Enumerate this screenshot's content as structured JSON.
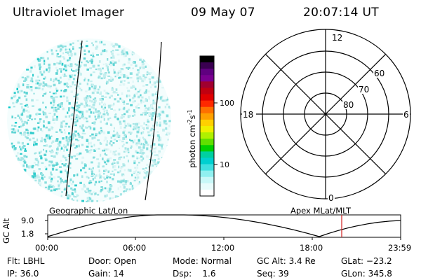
{
  "header": {
    "instrument": "Ultraviolet Imager",
    "date": "09 May 07",
    "time": "20:07:14 UT"
  },
  "colorbar": {
    "unit_label": "photon cm",
    "unit_sup1": "-2",
    "unit_mid": "s",
    "unit_sup2": "-1",
    "tick_100": "100",
    "tick_10": "10",
    "colors": [
      "#000000",
      "#3a0050",
      "#600080",
      "#7a0090",
      "#a00030",
      "#c00010",
      "#e00000",
      "#ff2800",
      "#ff7000",
      "#ffa000",
      "#ffd000",
      "#f0f000",
      "#b0f000",
      "#60e000",
      "#00d000",
      "#00d0a0",
      "#00d0d0",
      "#40e0e0",
      "#90f0f0",
      "#c8f8f8",
      "#e8fcfc",
      "#ffffff"
    ]
  },
  "polar_plot": {
    "mlt_12": "12",
    "mlt_18": "18",
    "mlt_6": "6",
    "mlt_0": "0",
    "lat_60": "60",
    "lat_70": "70",
    "lat_80": "80"
  },
  "timeline": {
    "left_title": "Geographic Lat/Lon",
    "right_title": "Apex MLat/MLT",
    "y_label": "GC Alt",
    "y_max": "9.0",
    "y_min": "1.8",
    "x_ticks": [
      "00:00",
      "06:00",
      "12:00",
      "18:00",
      "23:59"
    ]
  },
  "status": {
    "flt": "Flt: LBHL",
    "door": "Door: Open",
    "mode": "Mode: Normal",
    "gc_alt": "GC Alt: 3.4 Re",
    "glat": "GLat: −23.2",
    "ip": "IP: 36.0",
    "gain": "Gain: 14",
    "dsp": "Dsp:    1.6",
    "seq": "Seq: 39",
    "glon": "GLon: 345.8"
  }
}
